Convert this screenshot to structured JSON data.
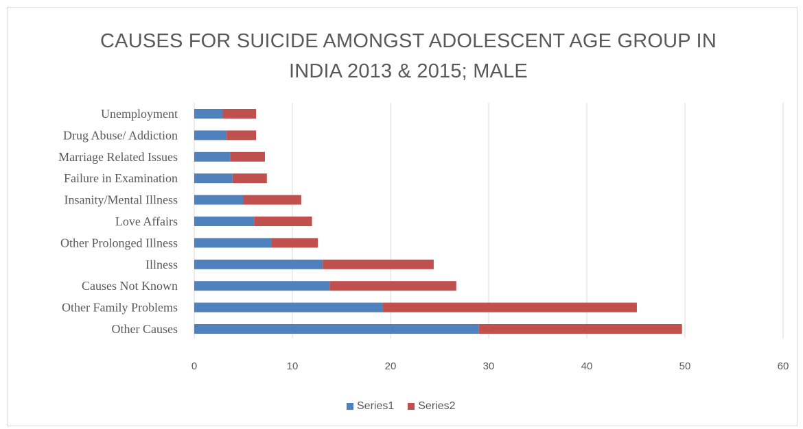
{
  "chart_data": {
    "type": "bar",
    "orientation": "horizontal",
    "stacked": true,
    "title": "CAUSES FOR SUICIDE AMONGST ADOLESCENT AGE GROUP IN INDIA 2013 & 2015; MALE",
    "title_lines": [
      "CAUSES FOR SUICIDE AMONGST ADOLESCENT AGE GROUP IN",
      "INDIA 2013 & 2015; MALE"
    ],
    "categories": [
      "Unemployment",
      "Drug Abuse/ Addiction",
      "Marriage Related Issues",
      "Failure in Examination",
      "Insanity/Mental Illness",
      "Love Affairs",
      "Other Prolonged Illness",
      "Illness",
      "Causes Not Known",
      "Other Family Problems",
      "Other Causes"
    ],
    "series": [
      {
        "name": "Series1",
        "color": "#4f81bd",
        "values": [
          2.9,
          3.3,
          3.7,
          3.9,
          5.0,
          6.1,
          7.9,
          13.1,
          13.8,
          19.2,
          29.0
        ]
      },
      {
        "name": "Series2",
        "color": "#c0504d",
        "values": [
          3.4,
          3.0,
          3.5,
          3.5,
          5.9,
          5.9,
          4.7,
          11.3,
          12.9,
          25.9,
          20.7
        ]
      }
    ],
    "xlim": [
      0,
      60
    ],
    "xticks": [
      0,
      10,
      20,
      30,
      40,
      50,
      60
    ],
    "grid": true,
    "legend_position": "bottom",
    "xlabel": "",
    "ylabel": ""
  }
}
